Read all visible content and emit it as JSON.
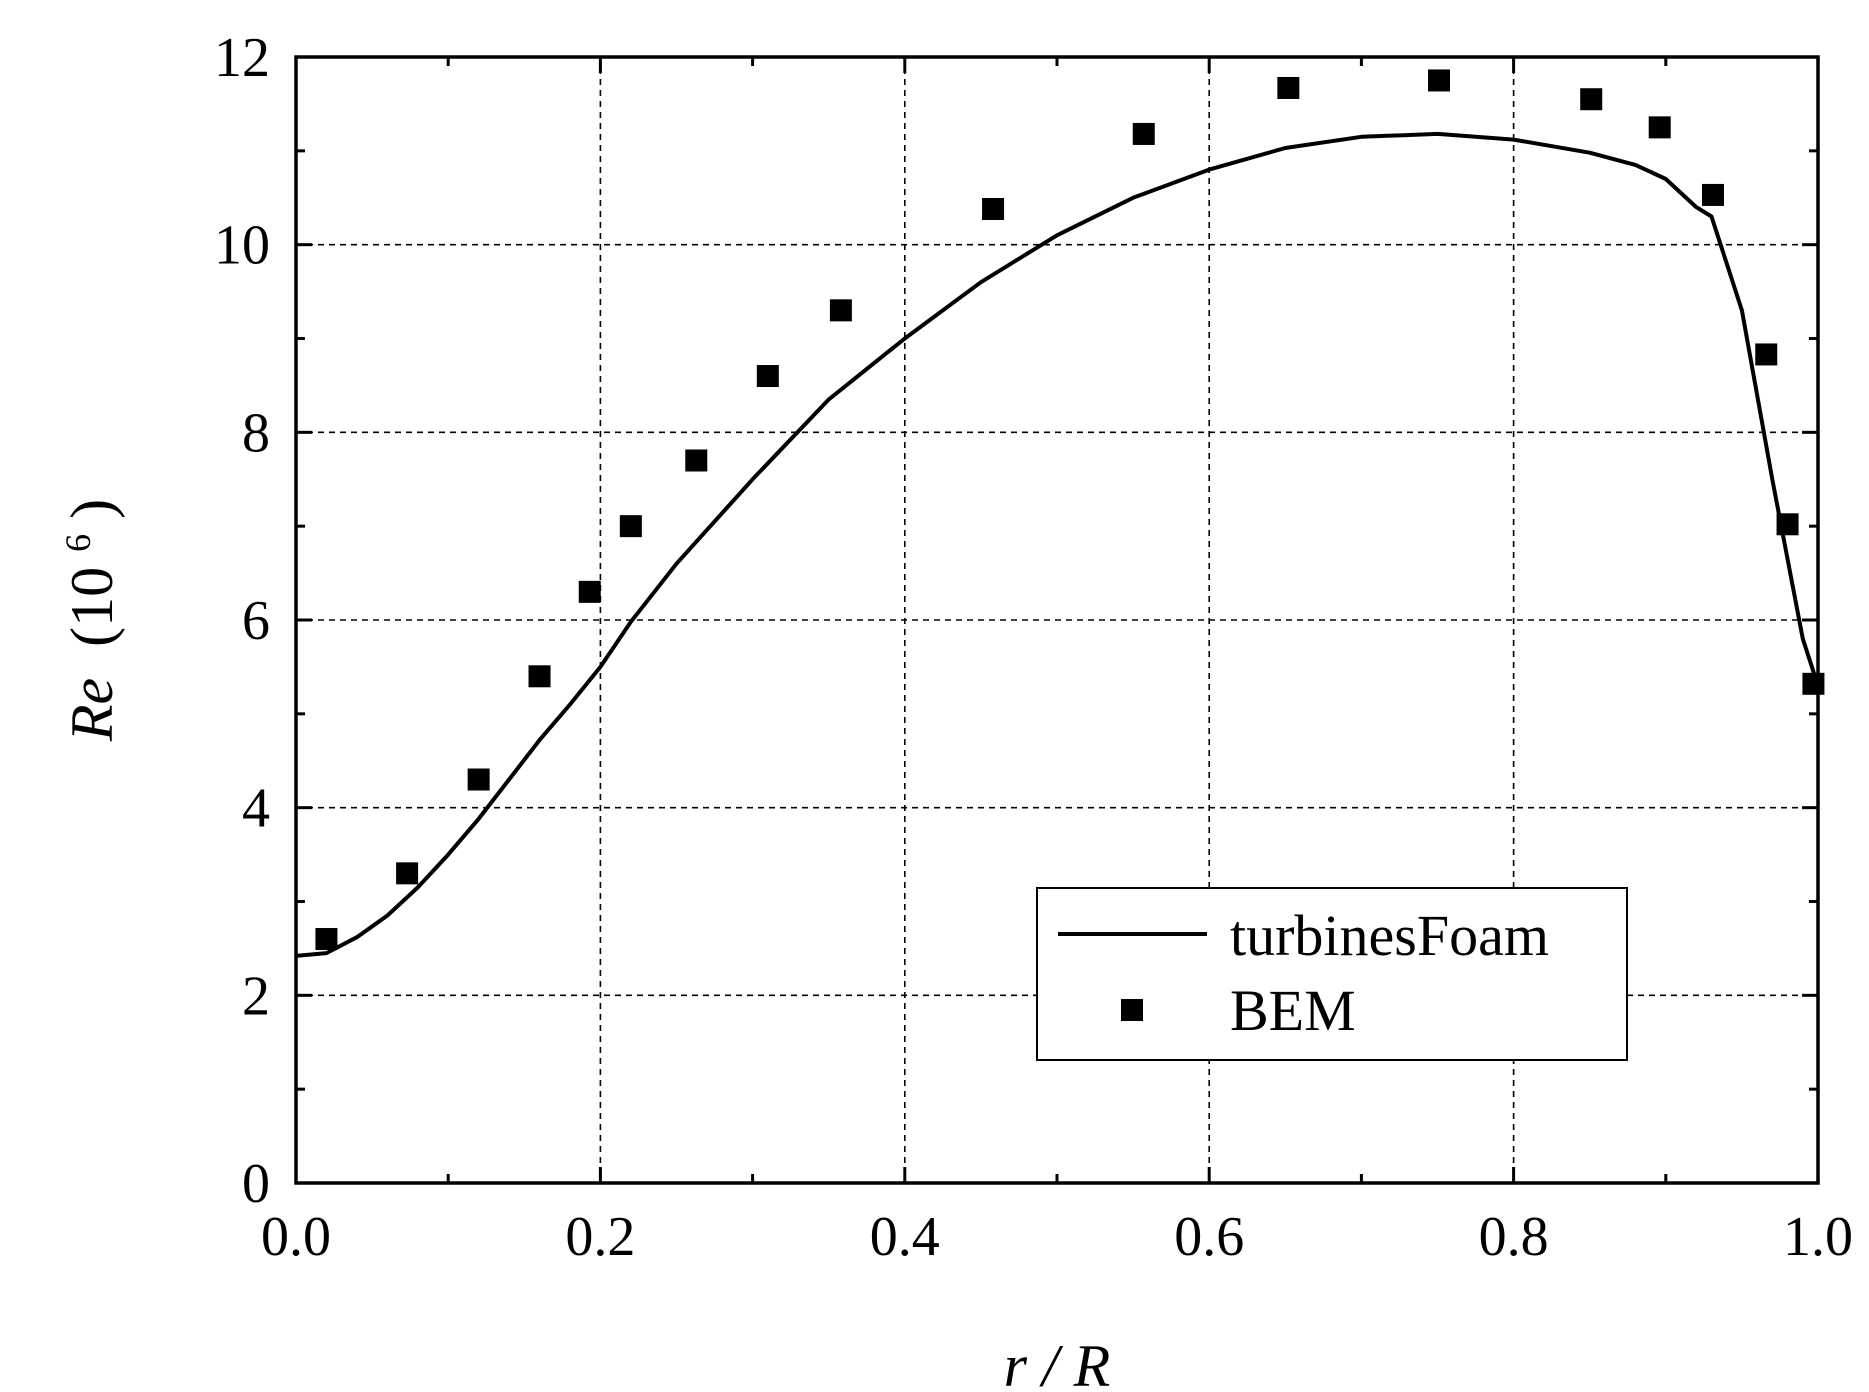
{
  "chart_data": {
    "type": "line",
    "xlabel": "r / R",
    "ylabel_main": "Re",
    "ylabel_unit": "(10",
    "ylabel_exp": "6",
    "ylabel_close": ")",
    "xlim": [
      0.0,
      1.0
    ],
    "ylim": [
      0,
      12
    ],
    "x_ticks": [
      0.0,
      0.2,
      0.4,
      0.6,
      0.8,
      1.0
    ],
    "x_tick_labels": [
      "0.0",
      "0.2",
      "0.4",
      "0.6",
      "0.8",
      "1.0"
    ],
    "y_ticks": [
      0,
      2,
      4,
      6,
      8,
      10,
      12
    ],
    "y_tick_labels": [
      "0",
      "2",
      "4",
      "6",
      "8",
      "10",
      "12"
    ],
    "grid": true,
    "legend_position": "lower-right",
    "series": [
      {
        "name": "turbinesFoam",
        "style": "line",
        "x": [
          0.0,
          0.02,
          0.04,
          0.06,
          0.08,
          0.1,
          0.12,
          0.14,
          0.16,
          0.18,
          0.2,
          0.22,
          0.25,
          0.3,
          0.35,
          0.4,
          0.45,
          0.5,
          0.55,
          0.6,
          0.65,
          0.7,
          0.75,
          0.8,
          0.85,
          0.88,
          0.9,
          0.92,
          0.93,
          0.95,
          0.97,
          0.99,
          1.0
        ],
        "y": [
          2.42,
          2.45,
          2.62,
          2.85,
          3.15,
          3.5,
          3.88,
          4.3,
          4.72,
          5.1,
          5.5,
          5.98,
          6.6,
          7.5,
          8.35,
          9.0,
          9.6,
          10.1,
          10.5,
          10.8,
          11.03,
          11.15,
          11.18,
          11.12,
          10.98,
          10.85,
          10.7,
          10.4,
          10.3,
          9.3,
          7.5,
          5.8,
          5.3
        ]
      },
      {
        "name": "BEM",
        "style": "marker",
        "x": [
          0.02,
          0.073,
          0.12,
          0.16,
          0.193,
          0.22,
          0.263,
          0.31,
          0.358,
          0.458,
          0.557,
          0.652,
          0.751,
          0.851,
          0.896,
          0.931,
          0.966,
          0.98,
          0.997
        ],
        "y": [
          2.6,
          3.3,
          4.3,
          5.4,
          6.3,
          7.0,
          7.7,
          8.6,
          9.3,
          10.38,
          11.18,
          11.67,
          11.75,
          11.55,
          11.25,
          10.53,
          8.83,
          7.02,
          5.32
        ]
      }
    ]
  }
}
